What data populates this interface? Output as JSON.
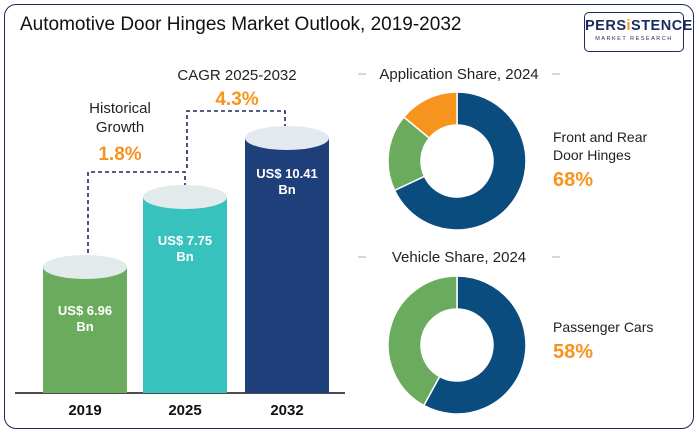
{
  "title": "Automotive Door Hinges Market Outlook, 2019-2032",
  "logo": {
    "word_before": "PERS",
    "word_highlight": "i",
    "word_after": "STENCE",
    "sub": "MARKET RESEARCH"
  },
  "colors": {
    "bar_2019": "#6aab5e",
    "bar_2025": "#38c2bd",
    "bar_2032": "#1f3f7a",
    "accent": "#f7941d",
    "donut_main": "#0b4c7f",
    "donut_green": "#6aab5e",
    "donut_orange": "#f7941d",
    "frame": "#1b2a5e"
  },
  "chart_data": [
    {
      "type": "bar",
      "categories": [
        "2019",
        "2025",
        "2032"
      ],
      "values": [
        6.96,
        7.75,
        10.41
      ],
      "value_labels": [
        "US$ 6.96 Bn",
        "US$ 7.75 Bn",
        "US$ 10.41 Bn"
      ],
      "annotations": [
        {
          "label_lines": [
            "Historical",
            "Growth"
          ],
          "value": "1.8%",
          "from": "2019",
          "to": "2025"
        },
        {
          "label_lines": [
            "CAGR 2025-2032"
          ],
          "value": "4.3%",
          "from": "2025",
          "to": "2032"
        }
      ]
    },
    {
      "type": "pie",
      "title": "Application Share, 2024",
      "slices": [
        {
          "value": 68,
          "color": "#0b4c7f"
        },
        {
          "value": 18,
          "color": "#6aab5e"
        },
        {
          "value": 14,
          "color": "#f7941d"
        }
      ],
      "callout_lines": [
        "Front and Rear",
        "Door Hinges"
      ],
      "callout_value": "68%"
    },
    {
      "type": "pie",
      "title": "Vehicle Share, 2024",
      "slices": [
        {
          "value": 58,
          "color": "#0b4c7f"
        },
        {
          "value": 42,
          "color": "#6aab5e"
        }
      ],
      "callout_lines": [
        "Passenger Cars"
      ],
      "callout_value": "58%"
    }
  ]
}
